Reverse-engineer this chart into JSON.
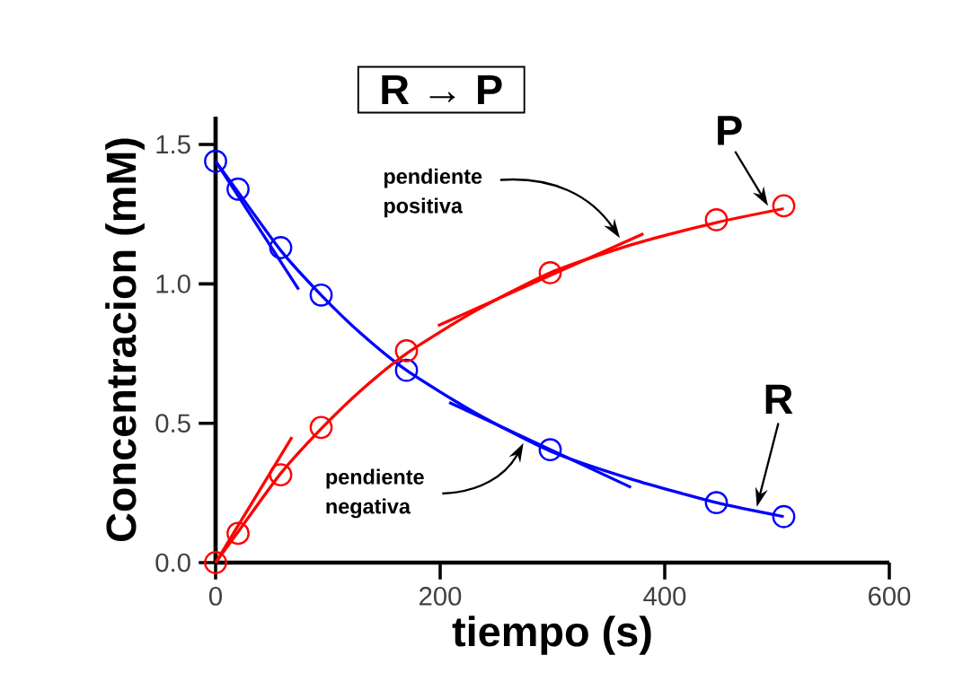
{
  "chart_data": {
    "type": "scatter",
    "title": "R → P",
    "xlabel": "tiempo (s)",
    "ylabel": "Concentracion (mM)",
    "xlim": [
      0,
      600
    ],
    "ylim": [
      0,
      1.6
    ],
    "xticks": [
      0,
      200,
      400,
      600
    ],
    "yticks": [
      {
        "value": 0,
        "label": "0.0"
      },
      {
        "value": 0.5,
        "label": "0.5"
      },
      {
        "value": 1.0,
        "label": "1.0"
      },
      {
        "value": 1.5,
        "label": "1.5"
      }
    ],
    "grid": false,
    "series": [
      {
        "type": "line",
        "color": "#0000ff",
        "x": [
          0,
          20,
          58,
          94,
          130,
          170,
          230,
          298,
          370,
          446,
          506
        ],
        "values": [
          1.44,
          1.33,
          1.12,
          0.96,
          0.82,
          0.69,
          0.54,
          0.4,
          0.3,
          0.215,
          0.165
        ]
      },
      {
        "type": "line",
        "color": "#ff0000",
        "x": [
          0,
          20,
          58,
          94,
          130,
          170,
          230,
          298,
          370,
          446,
          506
        ],
        "values": [
          0,
          0.11,
          0.32,
          0.48,
          0.62,
          0.75,
          0.9,
          1.04,
          1.14,
          1.22,
          1.27
        ]
      },
      {
        "type": "line",
        "color": "#0000ff",
        "x": [
          0,
          74
        ],
        "values": [
          1.44,
          0.98
        ]
      },
      {
        "type": "line",
        "color": "#0000ff",
        "x": [
          208,
          370
        ],
        "values": [
          0.575,
          0.27
        ]
      },
      {
        "type": "line",
        "color": "#ff0000",
        "x": [
          0,
          68
        ],
        "values": [
          0,
          0.45
        ]
      },
      {
        "type": "line",
        "color": "#ff0000",
        "x": [
          198,
          381
        ],
        "values": [
          0.85,
          1.18
        ]
      },
      {
        "marker": "circle",
        "color": "#0000ff",
        "x": [
          0,
          20,
          58,
          94,
          170,
          298,
          446,
          506
        ],
        "values": [
          1.44,
          1.34,
          1.13,
          0.96,
          0.69,
          0.405,
          0.215,
          0.165
        ]
      },
      {
        "marker": "circle",
        "color": "#ff0000",
        "x": [
          0,
          20,
          58,
          94,
          170,
          298,
          446,
          506
        ],
        "values": [
          0,
          0.105,
          0.315,
          0.485,
          0.76,
          1.04,
          1.23,
          1.28
        ]
      }
    ],
    "annotations": [
      {
        "text": "P",
        "x": 492,
        "y": 1.28
      },
      {
        "text": "R",
        "x": 482,
        "y": 0.2
      },
      "pendiente positiva",
      "pendiente negativa"
    ]
  }
}
